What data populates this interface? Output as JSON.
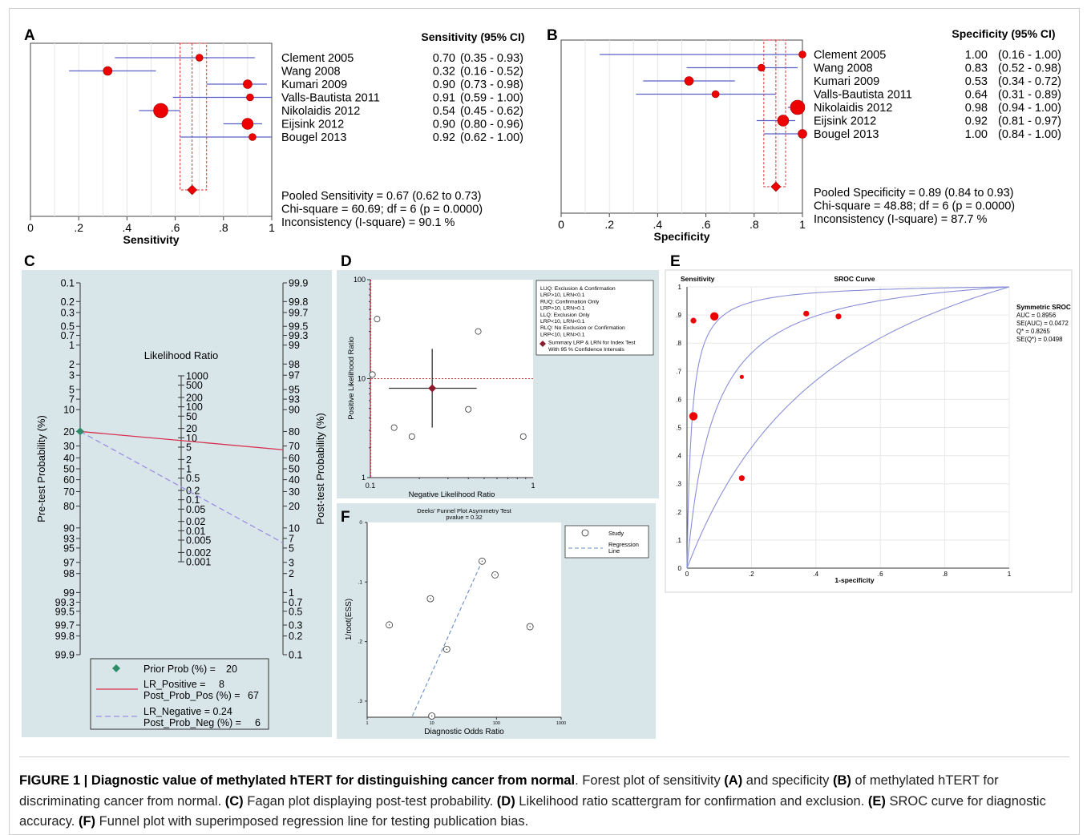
{
  "panels": {
    "A": {
      "label": "A"
    },
    "B": {
      "label": "B"
    },
    "C": {
      "label": "C"
    },
    "D": {
      "label": "D"
    },
    "E": {
      "label": "E"
    },
    "F": {
      "label": "F"
    }
  },
  "chart_data": [
    {
      "panel": "A",
      "type": "scatter",
      "subtype": "forest",
      "title": "",
      "xlabel": "Sensitivity",
      "xlim": [
        0,
        1
      ],
      "x_ticks": [
        "0",
        ".2",
        ".4",
        ".6",
        ".8",
        "1"
      ],
      "column_header": "Sensitivity (95% CI)",
      "studies": [
        {
          "name": "Clement 2005",
          "est": 0.7,
          "lo": 0.35,
          "hi": 0.93,
          "weight": 2,
          "ci_text": "0.70",
          "range_text": "(0.35 - 0.93)"
        },
        {
          "name": "Wang 2008",
          "est": 0.32,
          "lo": 0.16,
          "hi": 0.52,
          "weight": 3,
          "ci_text": "0.32",
          "range_text": "(0.16 - 0.52)"
        },
        {
          "name": "Kumari 2009",
          "est": 0.9,
          "lo": 0.73,
          "hi": 0.98,
          "weight": 3,
          "ci_text": "0.90",
          "range_text": "(0.73 - 0.98)"
        },
        {
          "name": "Valls-Bautista 2011",
          "est": 0.91,
          "lo": 0.59,
          "hi": 1.0,
          "weight": 2,
          "ci_text": "0.91",
          "range_text": "(0.59 - 1.00)"
        },
        {
          "name": "Nikolaidis 2012",
          "est": 0.54,
          "lo": 0.45,
          "hi": 0.62,
          "weight": 5,
          "ci_text": "0.54",
          "range_text": "(0.45 - 0.62)"
        },
        {
          "name": "Eijsink 2012",
          "est": 0.9,
          "lo": 0.8,
          "hi": 0.96,
          "weight": 4,
          "ci_text": "0.90",
          "range_text": "(0.80 - 0.96)"
        },
        {
          "name": "Bougel 2013",
          "est": 0.92,
          "lo": 0.62,
          "hi": 1.0,
          "weight": 2,
          "ci_text": "0.92",
          "range_text": "(0.62 - 1.00)"
        }
      ],
      "pooled": {
        "est": 0.67,
        "lo": 0.62,
        "hi": 0.73
      },
      "stats": [
        "Pooled Sensitivity = 0.67 (0.62 to 0.73)",
        "Chi-square = 60.69; df =  6 (p = 0.0000)",
        "Inconsistency (I-square) = 90.1 %"
      ]
    },
    {
      "panel": "B",
      "type": "scatter",
      "subtype": "forest",
      "title": "",
      "xlabel": "Specificity",
      "xlim": [
        0,
        1
      ],
      "x_ticks": [
        "0",
        ".2",
        ".4",
        ".6",
        ".8",
        "1"
      ],
      "column_header": "Specificity (95% CI)",
      "studies": [
        {
          "name": "Clement 2005",
          "est": 1.0,
          "lo": 0.16,
          "hi": 1.0,
          "weight": 2,
          "ci_text": "1.00",
          "range_text": "(0.16 - 1.00)"
        },
        {
          "name": "Wang 2008",
          "est": 0.83,
          "lo": 0.52,
          "hi": 0.98,
          "weight": 2,
          "ci_text": "0.83",
          "range_text": "(0.52 - 0.98)"
        },
        {
          "name": "Kumari 2009",
          "est": 0.53,
          "lo": 0.34,
          "hi": 0.72,
          "weight": 3,
          "ci_text": "0.53",
          "range_text": "(0.34 - 0.72)"
        },
        {
          "name": "Valls-Bautista 2011",
          "est": 0.64,
          "lo": 0.31,
          "hi": 0.89,
          "weight": 2,
          "ci_text": "0.64",
          "range_text": "(0.31 - 0.89)"
        },
        {
          "name": "Nikolaidis 2012",
          "est": 0.98,
          "lo": 0.94,
          "hi": 1.0,
          "weight": 5,
          "ci_text": "0.98",
          "range_text": "(0.94 - 1.00)"
        },
        {
          "name": "Eijsink 2012",
          "est": 0.92,
          "lo": 0.81,
          "hi": 0.97,
          "weight": 4,
          "ci_text": "0.92",
          "range_text": "(0.81 - 0.97)"
        },
        {
          "name": "Bougel 2013",
          "est": 1.0,
          "lo": 0.84,
          "hi": 1.0,
          "weight": 3,
          "ci_text": "1.00",
          "range_text": "(0.84 - 1.00)"
        }
      ],
      "pooled": {
        "est": 0.89,
        "lo": 0.84,
        "hi": 0.93
      },
      "stats": [
        "Pooled Specificity = 0.89 (0.84 to 0.93)",
        "Chi-square = 48.88; df =  6 (p = 0.0000)",
        "Inconsistency (I-square) = 87.7 %"
      ]
    },
    {
      "panel": "C",
      "type": "line",
      "subtype": "fagan",
      "left_label": "Pre-test Probability (%)",
      "right_label": "Post-test Probability (%)",
      "center_label": "Likelihood Ratio",
      "left_ticks": [
        "0.1",
        "0.2",
        "0.3",
        "0.5",
        "0.7",
        "1",
        "2",
        "3",
        "5",
        "7",
        "10",
        "20",
        "30",
        "40",
        "50",
        "60",
        "70",
        "80",
        "90",
        "93",
        "95",
        "97",
        "98",
        "99",
        "99.3",
        "99.5",
        "99.7",
        "99.8",
        "99.9"
      ],
      "right_ticks": [
        "99.9",
        "99.8",
        "99.7",
        "99.5",
        "99.3",
        "99",
        "98",
        "97",
        "95",
        "93",
        "90",
        "80",
        "70",
        "60",
        "50",
        "40",
        "30",
        "20",
        "10",
        "7",
        "5",
        "3",
        "2",
        "1",
        "0.7",
        "0.5",
        "0.3",
        "0.2",
        "0.1"
      ],
      "lr_ticks": [
        "1000",
        "500",
        "200",
        "100",
        "50",
        "20",
        "10",
        "5",
        "2",
        "1",
        "0.5",
        "0.2",
        "0.1",
        "0.05",
        "0.02",
        "0.01",
        "0.005",
        "0.002",
        "0.001"
      ],
      "prior": 20,
      "lr_positive": 8,
      "post_prob_pos": 67,
      "lr_negative": 0.24,
      "post_prob_neg": 6,
      "legend": [
        {
          "label": "Prior Prob (%) =",
          "value": "20"
        },
        {
          "label": "LR_Positive =",
          "value": "8",
          "label2": "Post_Prob_Pos (%) =",
          "value2": "67"
        },
        {
          "label": "LR_Negative = 0.24",
          "label2": "Post_Prob_Neg (%) =",
          "value2": "6"
        }
      ],
      "colors": {
        "positive": "#d9304f",
        "negative": "#9a8fe0",
        "prior": "#2e8b6a"
      }
    },
    {
      "panel": "D",
      "type": "scatter",
      "subtype": "lr-scattergram",
      "xlabel": "Negative Likelihood Ratio",
      "ylabel": "Positive Likelihood Ratio",
      "x_scale": "log",
      "y_scale": "log",
      "xlim": [
        0.1,
        1
      ],
      "ylim": [
        1,
        100
      ],
      "x_ticks": [
        "0.1",
        "1"
      ],
      "y_ticks": [
        "1",
        "10",
        "100"
      ],
      "points": [
        {
          "x": 0.11,
          "y": 40
        },
        {
          "x": 0.103,
          "y": 11
        },
        {
          "x": 0.46,
          "y": 30
        },
        {
          "x": 0.14,
          "y": 3.2
        },
        {
          "x": 0.18,
          "y": 2.6
        },
        {
          "x": 0.4,
          "y": 4.9
        },
        {
          "x": 0.87,
          "y": 2.6
        }
      ],
      "summary": {
        "x": 0.24,
        "y": 8,
        "x_lo": 0.13,
        "x_hi": 0.45,
        "y_lo": 3.2,
        "y_hi": 20
      },
      "legend": [
        "LUQ: Exclusion & Confirmation",
        "LRP>10, LRN<0.1",
        "RUQ: Confirmation Only",
        "LRP>10, LRN>0.1",
        "LLQ: Exclusion Only",
        "LRP<10, LRN<0.1",
        "RLQ: No Exclusion or Confirmation",
        "LRP<10, LRN>0.1",
        "Summary LRP & LRN for Index Test",
        "With 95 % Confidence Intervals"
      ]
    },
    {
      "panel": "E",
      "type": "line",
      "subtype": "sroc",
      "title": "SROC Curve",
      "xlabel": "1-specificity",
      "ylabel": "Sensitivity",
      "xlim": [
        0,
        1
      ],
      "ylim": [
        0,
        1
      ],
      "x_ticks": [
        "0",
        ".2",
        ".4",
        ".6",
        ".8",
        "1"
      ],
      "y_ticks": [
        "0",
        ".1",
        ".2",
        ".3",
        ".4",
        ".5",
        ".6",
        ".7",
        ".8",
        ".9",
        "1"
      ],
      "points": [
        {
          "x": 0.02,
          "y": 0.88,
          "size": 2
        },
        {
          "x": 0.085,
          "y": 0.895,
          "size": 3
        },
        {
          "x": 0.17,
          "y": 0.68,
          "size": 1
        },
        {
          "x": 0.37,
          "y": 0.905,
          "size": 2
        },
        {
          "x": 0.47,
          "y": 0.895,
          "size": 2
        },
        {
          "x": 0.02,
          "y": 0.54,
          "size": 3
        },
        {
          "x": 0.17,
          "y": 0.32,
          "size": 2
        }
      ],
      "curves_dor": [
        70,
        13,
        3
      ],
      "legend": [
        "Symmetric SROC",
        "AUC = 0.8956",
        "SE(AUC) = 0.0472",
        "Q* = 0.8265",
        "SE(Q*) = 0.0498"
      ]
    },
    {
      "panel": "F",
      "type": "scatter",
      "subtype": "funnel",
      "title": "Deeks' Funnel Plot Asymmetry Test",
      "subtitle": "pvalue  =  0.32",
      "xlabel": "Diagnostic Odds Ratio",
      "ylabel": "1/root(ESS)",
      "x_scale": "log",
      "xlim": [
        1,
        1000
      ],
      "ylim": [
        0,
        0.33
      ],
      "x_ticks": [
        "1",
        "10",
        "100",
        "1000"
      ],
      "y_ticks": [
        "0",
        ".1",
        ".2",
        ".3"
      ],
      "points": [
        {
          "x": 60,
          "y": 0.065
        },
        {
          "x": 95,
          "y": 0.088
        },
        {
          "x": 9.5,
          "y": 0.128
        },
        {
          "x": 2.2,
          "y": 0.172
        },
        {
          "x": 330,
          "y": 0.175
        },
        {
          "x": 17,
          "y": 0.213
        },
        {
          "x": 10,
          "y": 0.325
        }
      ],
      "regression": [
        {
          "x": 5,
          "y": 0.325
        },
        {
          "x": 60,
          "y": 0.065
        }
      ],
      "legend": [
        "Study",
        "Regression",
        "Line"
      ]
    }
  ],
  "caption": {
    "fig_label": "FIGURE 1 | Diagnostic value of methylated hTERT for distinguishing cancer from normal",
    "p1": ". Forest plot of sensitivity ",
    "b1": "(A)",
    "p2": " and specificity ",
    "b2": "(B)",
    "p3": " of methylated hTERT for discriminating cancer from normal. ",
    "b3": "(C)",
    "p4": " Fagan plot displaying post-test probability. ",
    "b4": "(D)",
    "p5": " Likelihood ratio scattergram for confirmation and exclusion. ",
    "b5": "(E)",
    "p6": " SROC curve for diagnostic accuracy. ",
    "b6": "(F)",
    "p7": " Funnel plot with superimposed regression line for testing publication bias."
  }
}
